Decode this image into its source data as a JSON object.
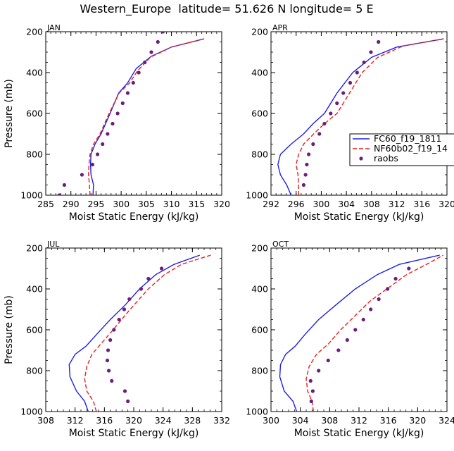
{
  "figure": {
    "title": "Western_Europe  latitude= 51.626 N longitude= 5 E"
  },
  "colors": {
    "model1": "#1f1fe6",
    "model2": "#e6201f",
    "raobs": "#6b1e7a",
    "axis": "#000000"
  },
  "legend": {
    "entries": [
      {
        "name": "FC60_f19_1811",
        "style": "solid",
        "color_key": "model1"
      },
      {
        "name": "NF60b02_f19_14",
        "style": "dashed",
        "color_key": "model2"
      },
      {
        "name": "raobs",
        "style": "marker",
        "color_key": "raobs"
      }
    ]
  },
  "chart_data": [
    {
      "type": "line",
      "panel": "JAN",
      "title": "JAN",
      "xlabel": "Moist Static Energy (kJ/kg)",
      "ylabel": "Pressure (mb)",
      "xlim": [
        285,
        320
      ],
      "xticks": [
        285,
        290,
        295,
        300,
        305,
        310,
        315,
        320
      ],
      "ylim": [
        1000,
        200
      ],
      "yticks": [
        200,
        400,
        600,
        800,
        1000
      ],
      "grid": false,
      "series": [
        {
          "name": "FC60_f19_1811",
          "style": "solid",
          "x": [
            294.4,
            294.5,
            294.0,
            293.9,
            294.0,
            294.8,
            296.0,
            297.8,
            299.5,
            301.3,
            303.0,
            306.0,
            310.0,
            316.5
          ],
          "y": [
            1000,
            950,
            900,
            850,
            800,
            750,
            700,
            600,
            500,
            450,
            380,
            320,
            275,
            235
          ]
        },
        {
          "name": "NF60b02_f19_14",
          "style": "dashed",
          "x": [
            293.8,
            293.7,
            293.5,
            293.6,
            293.8,
            294.5,
            295.8,
            297.6,
            299.6,
            301.7,
            303.3,
            305.8,
            310.0,
            316.5
          ],
          "y": [
            1000,
            950,
            900,
            850,
            800,
            750,
            700,
            600,
            500,
            450,
            390,
            325,
            275,
            235
          ]
        },
        {
          "name": "raobs",
          "style": "marker",
          "x": [
            287.7,
            288.7,
            292.2,
            294.3,
            295.3,
            296.3,
            297.3,
            298.3,
            299.3,
            300.3,
            301.3,
            302.4,
            303.5,
            304.7,
            306.0,
            307.3,
            308.3
          ],
          "y": [
            1000,
            950,
            900,
            850,
            800,
            750,
            700,
            650,
            600,
            550,
            500,
            450,
            400,
            350,
            300,
            250,
            200
          ]
        }
      ]
    },
    {
      "type": "line",
      "panel": "APR",
      "title": "APR",
      "xlabel": "Moist Static Energy (kJ/kg)",
      "ylabel": "",
      "xlim": [
        292,
        320
      ],
      "xticks": [
        292,
        296,
        300,
        304,
        308,
        312,
        316,
        320
      ],
      "ylim": [
        1000,
        200
      ],
      "yticks": [
        200,
        400,
        600,
        800,
        1000
      ],
      "grid": false,
      "series": [
        {
          "name": "FC60_f19_1811",
          "style": "solid",
          "x": [
            295.2,
            294.5,
            293.5,
            293.1,
            293.5,
            295.2,
            297.2,
            298.7,
            300.5,
            302.5,
            305.0,
            308.0,
            312.0,
            319.5
          ],
          "y": [
            1000,
            950,
            900,
            850,
            800,
            750,
            700,
            650,
            600,
            500,
            400,
            325,
            275,
            235
          ]
        },
        {
          "name": "NF60b02_f19_14",
          "style": "dashed",
          "x": [
            296.4,
            296.4,
            296.3,
            296.0,
            296.4,
            297.2,
            298.8,
            300.5,
            302.5,
            304.5,
            306.5,
            309.0,
            313.0,
            319.5
          ],
          "y": [
            1000,
            950,
            900,
            850,
            800,
            750,
            700,
            650,
            600,
            500,
            400,
            325,
            270,
            235
          ]
        },
        {
          "name": "raobs",
          "style": "marker",
          "x": [
            297.2,
            297.5,
            297.7,
            298.0,
            298.7,
            299.7,
            300.5,
            301.5,
            302.5,
            303.5,
            304.6,
            305.7,
            306.8,
            307.9,
            309.1
          ],
          "y": [
            950,
            900,
            850,
            800,
            750,
            700,
            650,
            600,
            550,
            500,
            450,
            400,
            350,
            300,
            250
          ]
        }
      ]
    },
    {
      "type": "line",
      "panel": "JUL",
      "title": "JUL",
      "xlabel": "Moist Static Energy (kJ/kg)",
      "ylabel": "Pressure (mb)",
      "xlim": [
        308,
        332
      ],
      "xticks": [
        308,
        312,
        316,
        320,
        324,
        328,
        332
      ],
      "ylim": [
        1000,
        200
      ],
      "yticks": [
        200,
        400,
        600,
        800,
        1000
      ],
      "grid": false,
      "series": [
        {
          "name": "FC60_f19_1811",
          "style": "solid",
          "x": [
            313.8,
            313.3,
            312.2,
            311.3,
            311.2,
            312.0,
            313.5,
            315.0,
            316.8,
            318.8,
            320.8,
            323.0,
            325.5,
            329.0
          ],
          "y": [
            1000,
            950,
            900,
            830,
            770,
            720,
            680,
            620,
            550,
            480,
            400,
            330,
            280,
            235
          ]
        },
        {
          "name": "NF60b02_f19_14",
          "style": "dashed",
          "x": [
            314.9,
            314.5,
            313.6,
            313.3,
            313.6,
            314.3,
            315.5,
            317.2,
            318.8,
            320.5,
            322.0,
            324.2,
            326.5,
            330.5
          ],
          "y": [
            1000,
            950,
            900,
            840,
            780,
            720,
            670,
            600,
            530,
            460,
            400,
            330,
            280,
            235
          ]
        },
        {
          "name": "raobs",
          "style": "marker",
          "x": [
            319.2,
            318.8,
            317.0,
            316.6,
            316.4,
            316.5,
            316.8,
            317.3,
            318.0,
            318.7,
            319.4,
            321.0,
            322.0,
            323.8
          ],
          "y": [
            950,
            900,
            850,
            800,
            750,
            700,
            650,
            600,
            550,
            500,
            450,
            400,
            350,
            300
          ]
        }
      ]
    },
    {
      "type": "line",
      "panel": "OCT",
      "title": "OCT",
      "xlabel": "Moist Static Energy (kJ/kg)",
      "ylabel": "",
      "xlim": [
        300,
        324
      ],
      "xticks": [
        300,
        304,
        308,
        312,
        316,
        320,
        324
      ],
      "ylim": [
        1000,
        200
      ],
      "yticks": [
        200,
        400,
        600,
        800,
        1000
      ],
      "grid": false,
      "series": [
        {
          "name": "FC60_f19_1811",
          "style": "solid",
          "x": [
            303.5,
            303.0,
            301.8,
            301.2,
            301.3,
            302.0,
            303.3,
            304.7,
            306.5,
            308.8,
            311.5,
            314.5,
            317.5,
            323.0
          ],
          "y": [
            1000,
            950,
            900,
            830,
            770,
            720,
            680,
            620,
            550,
            480,
            400,
            330,
            280,
            235
          ]
        },
        {
          "name": "NF60b02_f19_14",
          "style": "dashed",
          "x": [
            305.8,
            305.6,
            305.0,
            304.8,
            305.2,
            306.2,
            307.8,
            309.5,
            311.5,
            313.5,
            315.8,
            318.5,
            321.2,
            323.5
          ],
          "y": [
            1000,
            950,
            900,
            840,
            780,
            720,
            670,
            600,
            530,
            460,
            400,
            330,
            280,
            235
          ]
        },
        {
          "name": "raobs",
          "style": "marker",
          "x": [
            305.5,
            305.7,
            305.4,
            306.5,
            307.8,
            309.2,
            310.4,
            311.5,
            312.6,
            313.6,
            314.7,
            315.9,
            317.0,
            318.8
          ],
          "y": [
            950,
            900,
            850,
            800,
            750,
            700,
            650,
            600,
            550,
            500,
            450,
            400,
            350,
            300
          ]
        }
      ]
    }
  ]
}
